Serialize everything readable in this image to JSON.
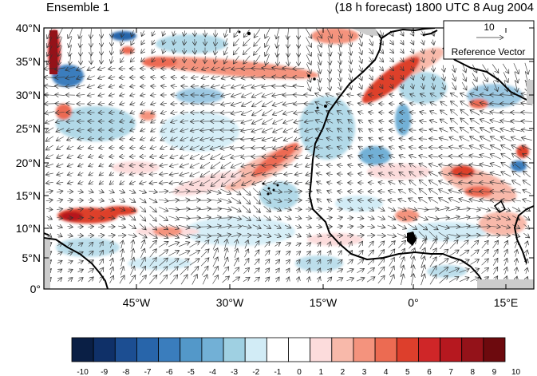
{
  "title_left": "Ensemble 1",
  "title_right": "(18 h forecast) 1800 UTC 8 Aug 2004",
  "lat_labels": [
    "40°N",
    "35°N",
    "30°N",
    "25°N",
    "20°N",
    "15°N",
    "10°N",
    "5°N",
    "0°"
  ],
  "lon_labels": [
    "45°W",
    "30°W",
    "15°W",
    "0°",
    "15°E"
  ],
  "reference_vector": {
    "magnitude": "10",
    "label": "Reference Vector"
  },
  "colorbar": {
    "labels": [
      "-10",
      "-9",
      "-8",
      "-7",
      "-6",
      "-5",
      "-4",
      "-3",
      "-2",
      "-1",
      "0",
      "1",
      "2",
      "3",
      "4",
      "5",
      "6",
      "7",
      "8",
      "9",
      "10"
    ],
    "colors": [
      "#0a1f45",
      "#0f3068",
      "#1c4e92",
      "#2865aa",
      "#3a7dbd",
      "#5398c9",
      "#72b0d6",
      "#9fd0e2",
      "#d2ecf6",
      "#ffffff",
      "#ffffff",
      "#fcdcdc",
      "#f8b9aa",
      "#f4937d",
      "#ec6b52",
      "#dd3f2c",
      "#cf2628",
      "#b6181f",
      "#941219",
      "#6d0a0e"
    ]
  }
}
